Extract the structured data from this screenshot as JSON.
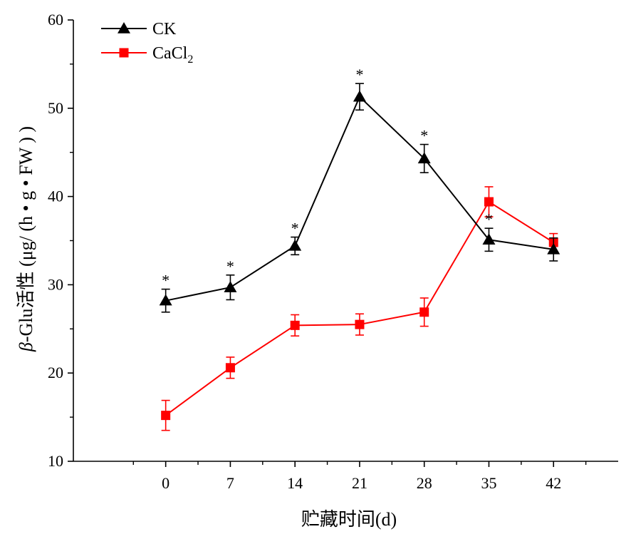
{
  "chart_data": {
    "type": "line",
    "x": [
      0,
      7,
      14,
      21,
      28,
      35,
      42
    ],
    "xlabel": "贮藏时间(d)",
    "ylabel_prefix": "β",
    "ylabel": "-Glu活性 (μg/ (h • g • FW ) )",
    "xlim": [
      -10,
      49
    ],
    "ylim": [
      10,
      60
    ],
    "xticks": [
      "0",
      "7",
      "14",
      "21",
      "28",
      "35",
      "42"
    ],
    "yticks": [
      "10",
      "20",
      "30",
      "40",
      "50",
      "60"
    ],
    "legend_position": "top-left",
    "grid": false,
    "series": [
      {
        "name": "CK",
        "name_sub": "",
        "color": "#000000",
        "marker": "triangle",
        "values": [
          28.2,
          29.7,
          34.4,
          51.3,
          44.3,
          35.1,
          34.0
        ],
        "errors": [
          1.3,
          1.4,
          1.0,
          1.5,
          1.6,
          1.3,
          1.3
        ],
        "significance": [
          "*",
          "*",
          "*",
          "*",
          "*",
          "*",
          ""
        ]
      },
      {
        "name": "CaCl",
        "name_sub": "2",
        "color": "#ff0000",
        "marker": "square",
        "values": [
          15.2,
          20.6,
          25.4,
          25.5,
          26.9,
          39.4,
          34.8
        ],
        "errors": [
          1.7,
          1.2,
          1.2,
          1.2,
          1.6,
          1.7,
          1.0
        ],
        "significance": [
          "",
          "",
          "",
          "",
          "",
          "",
          ""
        ]
      }
    ]
  }
}
